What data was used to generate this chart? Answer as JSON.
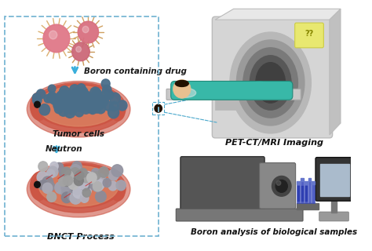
{
  "background_color": "#ffffff",
  "left_box_color": "#7ab8d4",
  "labels": {
    "boron_drug": "Boron containing drug",
    "tumor_cells": "Tumor cells",
    "neutron": "Neutron",
    "bnct": "BNCT Process",
    "pet_ct": "PET-CT/MRI Imaging",
    "boron_analysis": "Boron analysis of biological samples"
  },
  "arrow_color": "#3aafdb",
  "dashed_line_color": "#4aa8cc",
  "virus_colors": [
    "#e8778a",
    "#e07a8a",
    "#d86878"
  ],
  "spike_color": "#e8b870",
  "cell_color_blue": "#4a6e8a",
  "cell_color_gray": "#888888",
  "tissue_color": "#cc6655",
  "tissue_color2": "#dd9966",
  "label_fontsize": 7.5,
  "label_fontweight": "bold",
  "mri_body_color": "#d8d8d8",
  "mri_tunnel_outer": "#c0c0c0",
  "mri_tunnel_inner": "#888888",
  "mri_tunnel_dark": "#444444",
  "mri_panel_color": "#e8e870",
  "patient_color": "#3ab8a8",
  "patient_skin": "#e8c090",
  "bed_color": "#d0d0d0",
  "machine_dark": "#555555",
  "machine_mid": "#888888",
  "machine_light": "#aaaaaa",
  "monitor_color": "#333333",
  "monitor_screen": "#88aacc",
  "vial_color": "#4455bb"
}
